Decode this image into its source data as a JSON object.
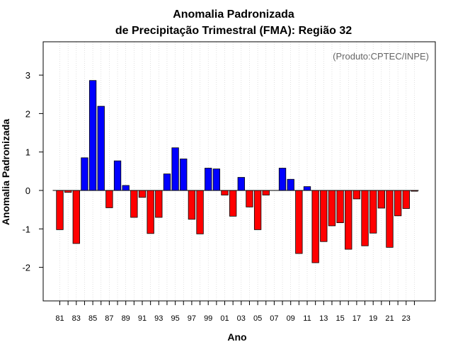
{
  "chart_data": {
    "type": "bar",
    "title": "Anomalia Padronizada",
    "subtitle": "de Precipitação Trimestral (FMA): Região 32",
    "xlabel": "Ano",
    "ylabel": "Anomalia Padronizada",
    "credit": "(Produto:CPTEC/INPE)",
    "ylim": [
      -2.9,
      3.85
    ],
    "yticks": [
      -2,
      -1,
      0,
      1,
      2,
      3
    ],
    "grid": "vertical dotted",
    "categories": [
      "81",
      "82",
      "83",
      "84",
      "85",
      "86",
      "87",
      "88",
      "89",
      "90",
      "91",
      "92",
      "93",
      "94",
      "95",
      "96",
      "97",
      "98",
      "99",
      "00",
      "01",
      "02",
      "03",
      "04",
      "05",
      "06",
      "07",
      "08",
      "09",
      "10",
      "11",
      "12",
      "13",
      "14",
      "15",
      "16",
      "17",
      "18",
      "19",
      "20",
      "21",
      "22",
      "23",
      "24"
    ],
    "xtick_labels": [
      "81",
      "83",
      "85",
      "87",
      "89",
      "91",
      "93",
      "95",
      "97",
      "99",
      "01",
      "03",
      "05",
      "07",
      "09",
      "11",
      "13",
      "15",
      "17",
      "19",
      "21",
      "23"
    ],
    "values": [
      -1.02,
      -0.05,
      -1.38,
      0.85,
      2.86,
      2.19,
      -0.45,
      0.77,
      0.13,
      -0.7,
      -0.18,
      -1.12,
      -0.7,
      0.43,
      1.11,
      0.82,
      -0.75,
      -1.13,
      0.58,
      0.56,
      -0.12,
      -0.67,
      0.34,
      -0.43,
      -1.02,
      -0.12,
      0.0,
      0.58,
      0.29,
      -1.64,
      0.1,
      -1.88,
      -1.33,
      -0.92,
      -0.84,
      -1.53,
      -0.22,
      -1.44,
      -1.11,
      -0.46,
      -1.48,
      -0.66,
      -0.47,
      -0.02
    ],
    "colors": {
      "positive": "#0000ff",
      "negative": "#ff0000"
    }
  }
}
